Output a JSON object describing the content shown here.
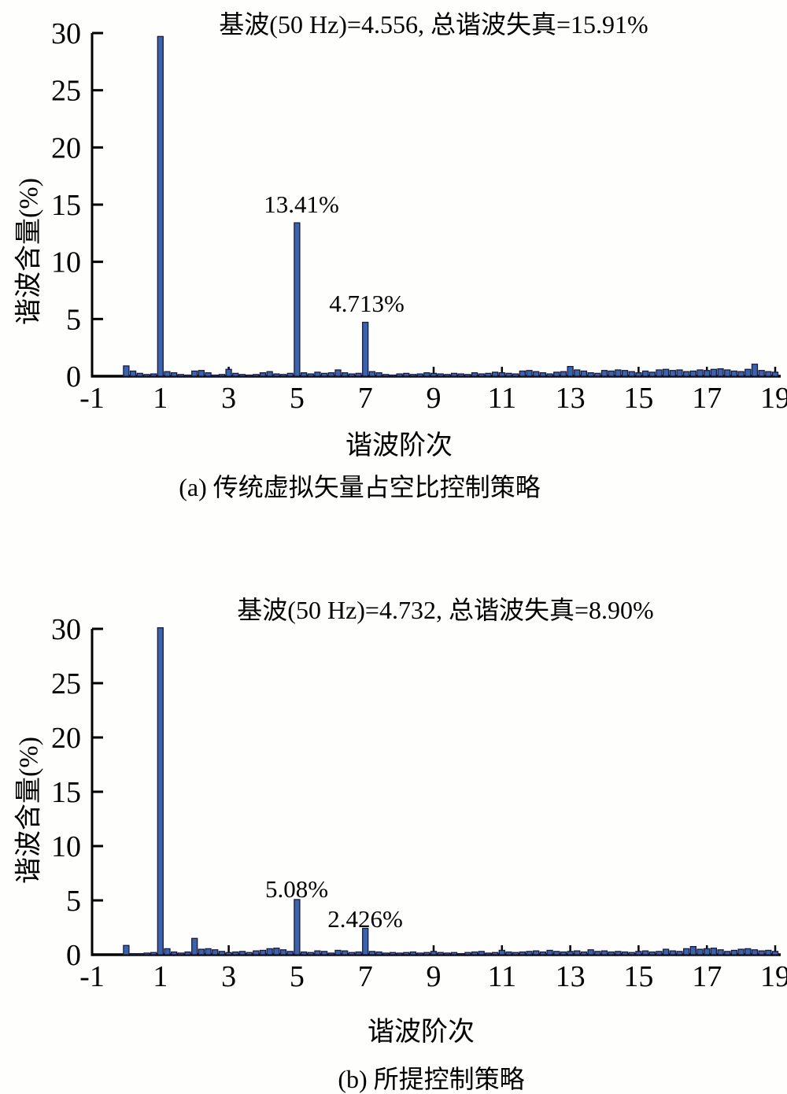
{
  "figure": {
    "background": "#fefefd",
    "text_color": "#000000"
  },
  "chart_data": [
    {
      "type": "bar",
      "title": "基波(50 Hz)=4.556, 总谐波失真=15.91%",
      "xlabel": "谐波阶次",
      "ylabel": "谐波含量(%)",
      "caption": "(a) 传统虚拟矢量占空比控制策略",
      "xlim": [
        -1,
        19
      ],
      "ylim": [
        0,
        30
      ],
      "xticks": [
        -1,
        1,
        3,
        5,
        7,
        9,
        11,
        13,
        15,
        17,
        19
      ],
      "yticks": [
        0,
        5,
        10,
        15,
        20,
        25,
        30
      ],
      "grid": false,
      "legend": null,
      "bar_color": "#3b63ab",
      "bar_edge": "#1a1a3c",
      "annotations": [
        {
          "x": 5,
          "y": 13.41,
          "text": "13.41%"
        },
        {
          "x": 7,
          "y": 4.713,
          "text": "4.713%"
        }
      ],
      "x": [
        0,
        0.2,
        0.4,
        0.6,
        0.8,
        1,
        1.2,
        1.4,
        1.6,
        1.8,
        2,
        2.2,
        2.4,
        2.6,
        2.8,
        3,
        3.2,
        3.4,
        3.6,
        3.8,
        4,
        4.2,
        4.4,
        4.6,
        4.8,
        5,
        5.2,
        5.4,
        5.6,
        5.8,
        6,
        6.2,
        6.4,
        6.6,
        6.8,
        7,
        7.2,
        7.4,
        7.6,
        7.8,
        8,
        8.2,
        8.4,
        8.6,
        8.8,
        9,
        9.2,
        9.4,
        9.6,
        9.8,
        10,
        10.2,
        10.4,
        10.6,
        10.8,
        11,
        11.2,
        11.4,
        11.6,
        11.8,
        12,
        12.2,
        12.4,
        12.6,
        12.8,
        13,
        13.2,
        13.4,
        13.6,
        13.8,
        14,
        14.2,
        14.4,
        14.6,
        14.8,
        15,
        15.2,
        15.4,
        15.6,
        15.8,
        16,
        16.2,
        16.4,
        16.6,
        16.8,
        17,
        17.2,
        17.4,
        17.6,
        17.8,
        18,
        18.2,
        18.4,
        18.6,
        18.8,
        19
      ],
      "values": [
        0.9,
        0.45,
        0.25,
        0.15,
        0.2,
        29.7,
        0.4,
        0.3,
        0.15,
        0.1,
        0.45,
        0.5,
        0.3,
        0.1,
        0.15,
        0.6,
        0.25,
        0.15,
        0.1,
        0.15,
        0.3,
        0.4,
        0.2,
        0.15,
        0.25,
        13.41,
        0.3,
        0.2,
        0.35,
        0.25,
        0.3,
        0.55,
        0.3,
        0.2,
        0.25,
        4.713,
        0.4,
        0.3,
        0.15,
        0.1,
        0.2,
        0.25,
        0.15,
        0.2,
        0.3,
        0.25,
        0.2,
        0.15,
        0.25,
        0.2,
        0.15,
        0.3,
        0.2,
        0.25,
        0.35,
        0.3,
        0.25,
        0.2,
        0.45,
        0.5,
        0.4,
        0.3,
        0.2,
        0.35,
        0.4,
        0.85,
        0.55,
        0.45,
        0.3,
        0.25,
        0.5,
        0.45,
        0.55,
        0.5,
        0.4,
        0.3,
        0.45,
        0.35,
        0.55,
        0.6,
        0.5,
        0.55,
        0.4,
        0.45,
        0.55,
        0.5,
        0.6,
        0.65,
        0.55,
        0.45,
        0.4,
        0.6,
        1.05,
        0.5,
        0.4,
        0.35
      ]
    },
    {
      "type": "bar",
      "title": "基波(50 Hz)=4.732, 总谐波失真=8.90%",
      "xlabel": "谐波阶次",
      "ylabel": "谐波含量(%)",
      "caption": "(b) 所提控制策略",
      "xlim": [
        -1,
        19
      ],
      "ylim": [
        0,
        30
      ],
      "xticks": [
        -1,
        1,
        3,
        5,
        7,
        9,
        11,
        13,
        15,
        17,
        19
      ],
      "yticks": [
        0,
        5,
        10,
        15,
        20,
        25,
        30
      ],
      "grid": false,
      "legend": null,
      "bar_color": "#3b63ab",
      "bar_edge": "#1a1a3c",
      "annotations": [
        {
          "x": 5,
          "y": 5.08,
          "text": "5.08%"
        },
        {
          "x": 7,
          "y": 2.426,
          "text": "2.426%"
        }
      ],
      "x": [
        0,
        0.2,
        0.4,
        0.6,
        0.8,
        1,
        1.2,
        1.4,
        1.6,
        1.8,
        2,
        2.2,
        2.4,
        2.6,
        2.8,
        3,
        3.2,
        3.4,
        3.6,
        3.8,
        4,
        4.2,
        4.4,
        4.6,
        4.8,
        5,
        5.2,
        5.4,
        5.6,
        5.8,
        6,
        6.2,
        6.4,
        6.6,
        6.8,
        7,
        7.2,
        7.4,
        7.6,
        7.8,
        8,
        8.2,
        8.4,
        8.6,
        8.8,
        9,
        9.2,
        9.4,
        9.6,
        9.8,
        10,
        10.2,
        10.4,
        10.6,
        10.8,
        11,
        11.2,
        11.4,
        11.6,
        11.8,
        12,
        12.2,
        12.4,
        12.6,
        12.8,
        13,
        13.2,
        13.4,
        13.6,
        13.8,
        14,
        14.2,
        14.4,
        14.6,
        14.8,
        15,
        15.2,
        15.4,
        15.6,
        15.8,
        16,
        16.2,
        16.4,
        16.6,
        16.8,
        17,
        17.2,
        17.4,
        17.6,
        17.8,
        18,
        18.2,
        18.4,
        18.6,
        18.8,
        19
      ],
      "values": [
        0.85,
        0.1,
        0.1,
        0.15,
        0.2,
        30.1,
        0.55,
        0.25,
        0.15,
        0.25,
        1.5,
        0.5,
        0.55,
        0.45,
        0.3,
        0.2,
        0.25,
        0.3,
        0.2,
        0.35,
        0.4,
        0.55,
        0.6,
        0.45,
        0.3,
        5.08,
        0.25,
        0.2,
        0.35,
        0.3,
        0.15,
        0.4,
        0.35,
        0.2,
        0.25,
        2.426,
        0.3,
        0.25,
        0.15,
        0.2,
        0.15,
        0.2,
        0.25,
        0.15,
        0.2,
        0.3,
        0.2,
        0.15,
        0.2,
        0.1,
        0.2,
        0.25,
        0.3,
        0.15,
        0.2,
        0.4,
        0.25,
        0.2,
        0.25,
        0.3,
        0.35,
        0.25,
        0.4,
        0.3,
        0.25,
        0.3,
        0.35,
        0.25,
        0.45,
        0.3,
        0.35,
        0.25,
        0.3,
        0.25,
        0.2,
        0.3,
        0.35,
        0.25,
        0.3,
        0.5,
        0.35,
        0.3,
        0.55,
        0.75,
        0.5,
        0.55,
        0.6,
        0.45,
        0.3,
        0.4,
        0.5,
        0.55,
        0.45,
        0.35,
        0.4,
        0.3
      ]
    }
  ]
}
